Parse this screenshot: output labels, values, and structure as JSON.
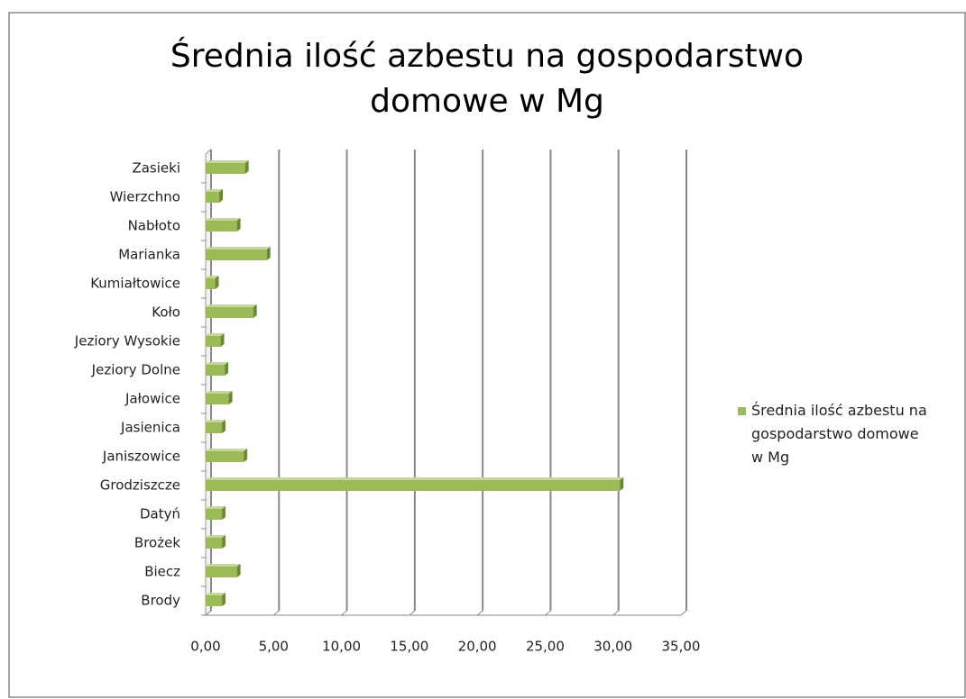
{
  "chart_data": {
    "type": "bar",
    "orientation": "horizontal",
    "title": "Średnia ilość azbestu na gospodarstwo domowe w Mg",
    "categories": [
      "Brody",
      "Biecz",
      "Brożek",
      "Datyń",
      "Grodziszcze",
      "Janiszowice",
      "Jasienica",
      "Jałowice",
      "Jeziory Dolne",
      "Jeziory Wysokie",
      "Koło",
      "Kumiałtowice",
      "Marianka",
      "Nabłoto",
      "Wierzchno",
      "Zasieki"
    ],
    "series": [
      {
        "name": "Średnia ilość azbestu na gospodarstwo domowe w Mg",
        "color": "#9bbb59",
        "values": [
          1.2,
          2.3,
          1.2,
          1.2,
          30.5,
          2.8,
          1.2,
          1.7,
          1.4,
          1.1,
          3.5,
          0.7,
          4.5,
          2.3,
          1.0,
          2.9
        ]
      }
    ],
    "xlim": [
      0,
      35
    ],
    "xticks": [
      {
        "value": 0,
        "label": "0,00"
      },
      {
        "value": 5,
        "label": "5,00"
      },
      {
        "value": 10,
        "label": "10,00"
      },
      {
        "value": 15,
        "label": "15,00"
      },
      {
        "value": 20,
        "label": "20,00"
      },
      {
        "value": 25,
        "label": "25,00"
      },
      {
        "value": 30,
        "label": "30,00"
      },
      {
        "value": 35,
        "label": "35,00"
      }
    ],
    "grid": true,
    "legend": "right"
  }
}
